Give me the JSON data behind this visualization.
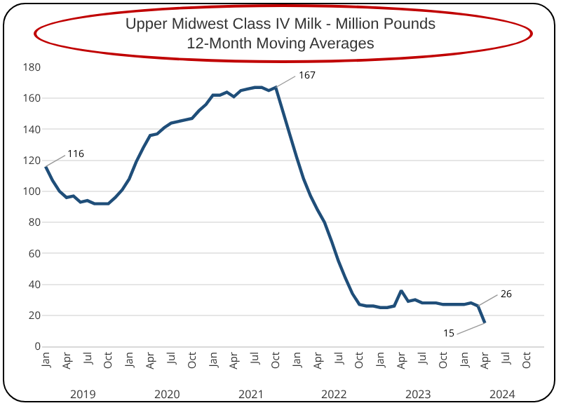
{
  "chart_data": {
    "type": "line",
    "title": "Upper Midwest Class IV Milk - Million Pounds\n12-Month Moving Averages",
    "categories": [
      "Jan",
      null,
      null,
      "Apr",
      null,
      null,
      "Jul",
      null,
      null,
      "Oct",
      null,
      null,
      "Jan",
      null,
      null,
      "Apr",
      null,
      null,
      "Jul",
      null,
      null,
      "Oct",
      null,
      null,
      "Jan",
      null,
      null,
      "Apr",
      null,
      null,
      "Jul",
      null,
      null,
      "Oct",
      null,
      null,
      "Jan",
      null,
      null,
      "Apr",
      null,
      null,
      "Jul",
      null,
      null,
      "Oct",
      null,
      null,
      "Jan",
      null,
      null,
      "Apr",
      null,
      null,
      "Jul",
      null,
      null,
      "Oct",
      null,
      null,
      "Jan",
      null,
      null,
      "Apr",
      null,
      null,
      "Jul",
      null,
      null,
      "Oct",
      null,
      null
    ],
    "series": [
      {
        "color": "#1f4e79",
        "values": [
          116,
          107,
          100,
          96,
          97,
          93,
          94,
          92,
          92,
          92,
          96,
          101,
          108,
          119,
          128,
          136,
          137,
          141,
          144,
          145,
          146,
          147,
          152,
          156,
          162,
          162,
          164,
          161,
          165,
          166,
          167,
          167,
          165,
          167,
          152,
          137,
          122,
          108,
          97,
          88,
          80,
          68,
          55,
          44,
          34,
          27,
          26,
          26,
          25,
          25,
          26,
          36,
          29,
          30,
          28,
          28,
          28,
          27,
          27,
          27,
          27,
          28,
          26,
          15,
          null,
          null,
          null,
          null,
          null,
          null,
          null,
          null
        ],
        "value_labels": [
          "116",
          null,
          null,
          null,
          null,
          null,
          null,
          null,
          null,
          null,
          null,
          null,
          null,
          null,
          null,
          null,
          null,
          null,
          null,
          null,
          null,
          null,
          null,
          null,
          null,
          null,
          null,
          null,
          null,
          null,
          null,
          null,
          null,
          "167",
          null,
          null,
          null,
          null,
          null,
          null,
          null,
          null,
          null,
          null,
          null,
          null,
          null,
          null,
          null,
          null,
          null,
          null,
          null,
          null,
          null,
          null,
          null,
          null,
          null,
          null,
          null,
          null,
          "26",
          "15",
          null,
          null,
          null,
          null,
          null,
          null,
          null,
          null
        ]
      }
    ],
    "annotations": [
      "2019",
      "2020",
      "2021",
      "2022",
      "2023",
      "2024"
    ],
    "ylim": [
      0,
      180
    ],
    "yticks": [
      0,
      20,
      40,
      60,
      80,
      100,
      120,
      140,
      160,
      180
    ],
    "grid": "y",
    "marker": "none",
    "line_style": "solid"
  }
}
